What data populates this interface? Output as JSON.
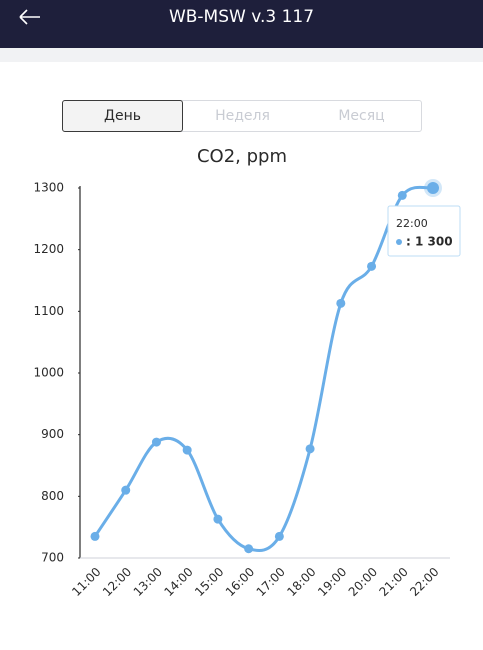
{
  "header": {
    "title": "WB-MSW v.3 117"
  },
  "tabs": [
    "День",
    "Неделя",
    "Месяц"
  ],
  "chart_data": {
    "type": "line",
    "title": "CO2, ppm",
    "categories": [
      "11:00",
      "12:00",
      "13:00",
      "14:00",
      "15:00",
      "16:00",
      "17:00",
      "18:00",
      "19:00",
      "20:00",
      "21:00",
      "22:00"
    ],
    "series": [
      {
        "name": "CO2",
        "color": "#6aaee8",
        "values": [
          735,
          810,
          888,
          875,
          763,
          715,
          735,
          877,
          1113,
          1173,
          1288,
          1300
        ]
      }
    ],
    "ylim": [
      700,
      1300
    ],
    "yticks": [
      700,
      800,
      900,
      1000,
      1100,
      1200,
      1300
    ],
    "tooltip_label": ": 1 300"
  }
}
